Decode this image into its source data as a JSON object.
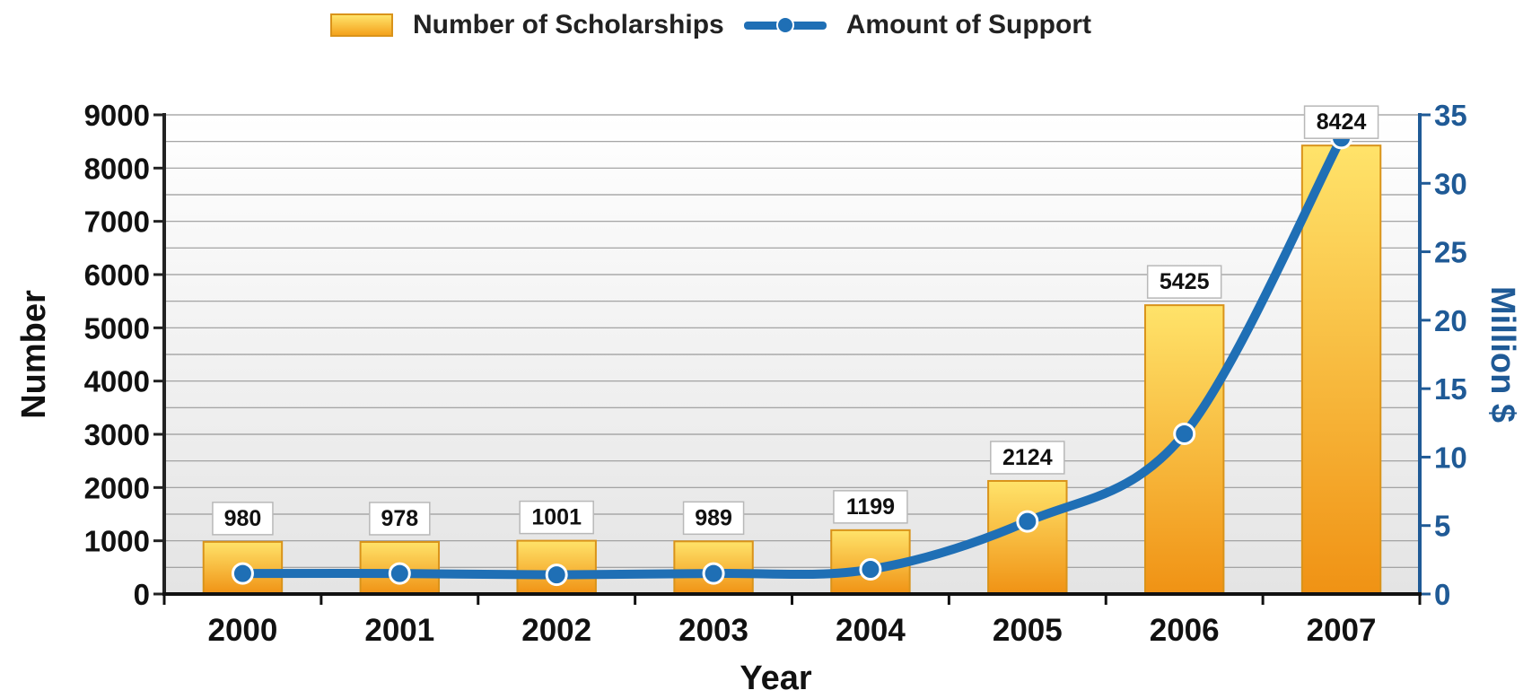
{
  "chart_data": {
    "type": "bar",
    "categories": [
      "2000",
      "2001",
      "2002",
      "2003",
      "2004",
      "2005",
      "2006",
      "2007"
    ],
    "series": [
      {
        "name": "Number of Scholarships",
        "type": "bar",
        "axis": "left",
        "values": [
          980,
          978,
          1001,
          989,
          1199,
          2124,
          5425,
          8424
        ],
        "data_labels": [
          "980",
          "978",
          "1001",
          "989",
          "1199",
          "2124",
          "5425",
          "8424"
        ]
      },
      {
        "name": "Amount of Support",
        "type": "line",
        "axis": "right",
        "values": [
          1.5,
          1.5,
          1.4,
          1.5,
          1.8,
          5.3,
          11.7,
          33.3
        ]
      }
    ],
    "xlabel": "Year",
    "ylabel": "Number",
    "y2label": "Million $",
    "ylim": [
      0,
      9000
    ],
    "y2lim": [
      0,
      35
    ],
    "yticks": [
      "0",
      "1000",
      "2000",
      "3000",
      "4000",
      "5000",
      "6000",
      "7000",
      "8000",
      "9000"
    ],
    "y2ticks": [
      "0",
      "5",
      "10",
      "15",
      "20",
      "25",
      "30",
      "35"
    ],
    "grid": true,
    "legend": "top-center",
    "colors": {
      "bar_top": "#ffe36a",
      "bar_bottom": "#f4a21c",
      "bar_border": "#d9931a",
      "line": "#1f6fb5",
      "right_axis": "#1f5a96",
      "left_axis": "#222222"
    }
  }
}
